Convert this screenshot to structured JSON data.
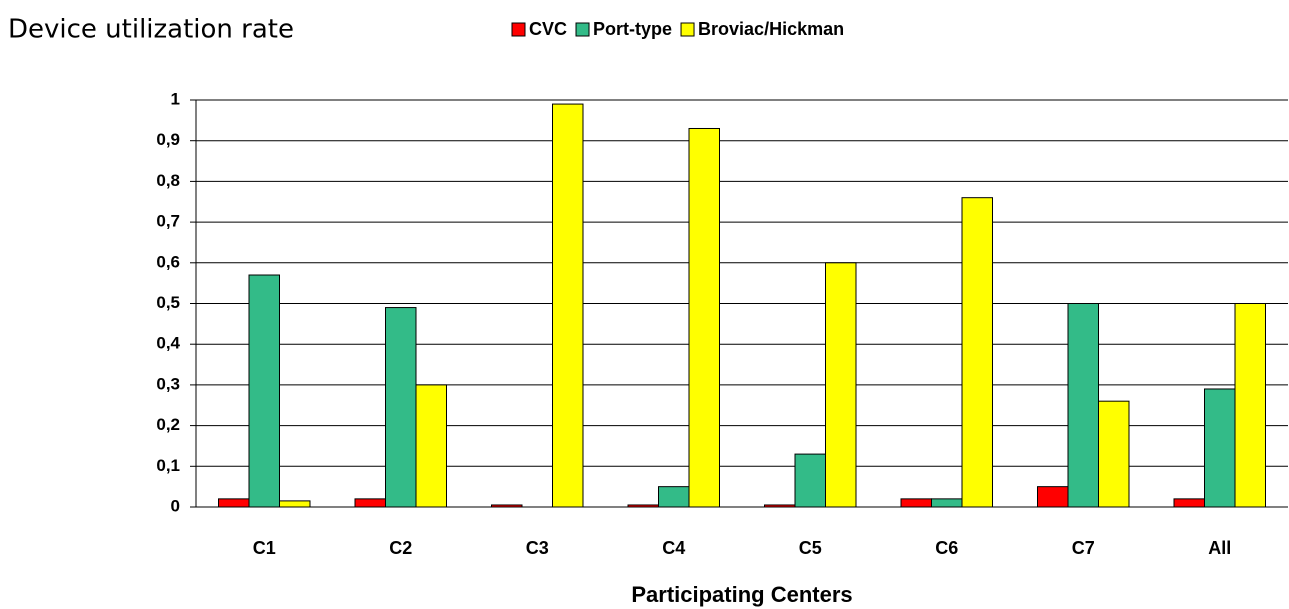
{
  "chart_data": {
    "type": "bar",
    "title": "Device utilization rate",
    "x_label": "Participating Centers",
    "categories": [
      "C1",
      "C2",
      "C3",
      "C4",
      "C5",
      "C6",
      "C7",
      "All"
    ],
    "series": [
      {
        "name": "CVC",
        "color": "#ff0000",
        "values": [
          0.02,
          0.02,
          0.005,
          0.005,
          0.005,
          0.02,
          0.05,
          0.02
        ]
      },
      {
        "name": "Port-type",
        "color": "#33bb88",
        "values": [
          0.57,
          0.49,
          0,
          0.05,
          0.13,
          0.02,
          0.5,
          0.29
        ]
      },
      {
        "name": "Broviac/Hickman",
        "color": "#ffff00",
        "values": [
          0.015,
          0.3,
          0.99,
          0.93,
          0.6,
          0.76,
          0.26,
          0.5
        ]
      }
    ],
    "ylim": [
      0,
      1
    ],
    "yticks": [
      0,
      {
        "value": 0.1,
        "label": "0,1"
      },
      {
        "value": 0.2,
        "label": "0,2"
      },
      {
        "value": 0.3,
        "label": "0,3"
      },
      {
        "value": 0.4,
        "label": "0,4"
      },
      {
        "value": 0.5,
        "label": "0,5"
      },
      {
        "value": 0.6,
        "label": "0,6"
      },
      {
        "value": 0.7,
        "label": "0,7"
      },
      {
        "value": 0.8,
        "label": "0,8"
      },
      {
        "value": 0.9,
        "label": "0,9"
      },
      1
    ],
    "grid": true
  }
}
